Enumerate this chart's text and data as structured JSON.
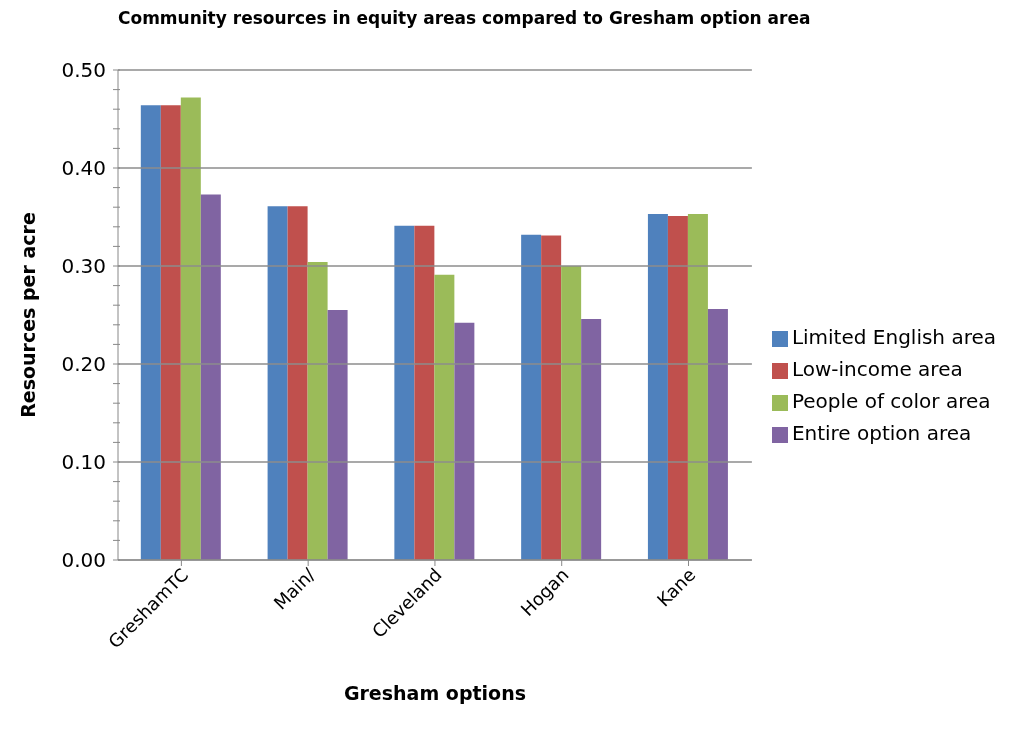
{
  "chart_data": {
    "type": "bar",
    "title": "Community resources in equity areas compared to Gresham option area",
    "xlabel": "Gresham options",
    "ylabel": "Resources per acre",
    "categories": [
      "GreshamTC",
      "Main/",
      "Cleveland",
      "Hogan",
      "Kane"
    ],
    "series": [
      {
        "name": "Limited English area",
        "color": "#4f81bd",
        "values": [
          0.464,
          0.361,
          0.341,
          0.332,
          0.353
        ]
      },
      {
        "name": "Low-income area",
        "color": "#c0504d",
        "values": [
          0.464,
          0.361,
          0.341,
          0.331,
          0.351
        ]
      },
      {
        "name": "People of color area",
        "color": "#9bbb59",
        "values": [
          0.472,
          0.304,
          0.291,
          0.3,
          0.353
        ]
      },
      {
        "name": "Entire option area",
        "color": "#8064a2",
        "values": [
          0.373,
          0.255,
          0.242,
          0.246,
          0.256
        ]
      }
    ],
    "ylim": [
      0,
      0.5
    ],
    "yticks": [
      {
        "value": 0,
        "label": "0.00"
      },
      {
        "value": 0.02,
        "label": null
      },
      {
        "value": 0.04,
        "label": null
      },
      {
        "value": 0.06,
        "label": null
      },
      {
        "value": 0.08,
        "label": null
      },
      {
        "value": 0.1,
        "label": "0.10"
      },
      {
        "value": 0.12,
        "label": null
      },
      {
        "value": 0.14,
        "label": null
      },
      {
        "value": 0.16,
        "label": null
      },
      {
        "value": 0.18,
        "label": null
      },
      {
        "value": 0.2,
        "label": "0.20"
      },
      {
        "value": 0.22,
        "label": null
      },
      {
        "value": 0.24,
        "label": null
      },
      {
        "value": 0.26,
        "label": null
      },
      {
        "value": 0.28,
        "label": null
      },
      {
        "value": 0.3,
        "label": "0.30"
      },
      {
        "value": 0.32,
        "label": null
      },
      {
        "value": 0.34,
        "label": null
      },
      {
        "value": 0.36,
        "label": null
      },
      {
        "value": 0.38,
        "label": null
      },
      {
        "value": 0.4,
        "label": "0.40"
      },
      {
        "value": 0.42,
        "label": null
      },
      {
        "value": 0.44,
        "label": null
      },
      {
        "value": 0.46,
        "label": null
      },
      {
        "value": 0.48,
        "label": null
      },
      {
        "value": 0.5,
        "label": "0.50"
      }
    ],
    "grid": "y",
    "legend": "right"
  }
}
